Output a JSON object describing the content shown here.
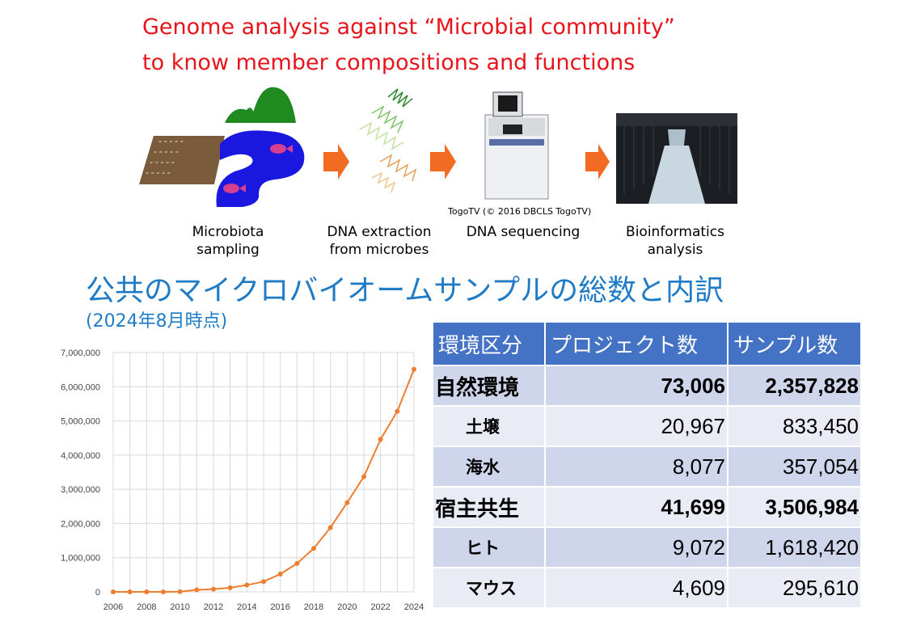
{
  "title": {
    "line1": "Genome analysis against “Microbial community”",
    "line2": "to know member compositions and functions"
  },
  "workflow": {
    "steps": [
      {
        "line1": "Microbiota",
        "line2": "sampling"
      },
      {
        "line1": "DNA extraction",
        "line2": "from microbes"
      },
      {
        "line1": "DNA sequencing",
        "line2": ""
      },
      {
        "line1": "Bioinformatics",
        "line2": "analysis"
      }
    ],
    "credit": "TogoTV (© 2016 DBCLS TogoTV)",
    "colors": {
      "arrow": "#f26b22",
      "river": "#1a18e0",
      "hill": "#1f8a1f",
      "fish": "#d63f8e",
      "soil": "#7a5c3c"
    }
  },
  "heading": {
    "main": "公共のマイクロバイオームサンプルの総数と内訳",
    "sub": "(2024年8月時点)"
  },
  "table": {
    "headers": [
      "環境区分",
      "プロジェクト数",
      "サンプル数"
    ],
    "rows": [
      {
        "label": "自然環境",
        "projects": "73,006",
        "samples": "2,357,828",
        "major": true
      },
      {
        "label": "土壌",
        "projects": "20,967",
        "samples": "833,450",
        "major": false
      },
      {
        "label": "海水",
        "projects": "8,077",
        "samples": "357,054",
        "major": false
      },
      {
        "label": "宿主共生",
        "projects": "41,699",
        "samples": "3,506,984",
        "major": true
      },
      {
        "label": "ヒト",
        "projects": "9,072",
        "samples": "1,618,420",
        "major": false
      },
      {
        "label": "マウス",
        "projects": "4,609",
        "samples": "295,610",
        "major": false
      }
    ],
    "colors": {
      "header": "#4472c4",
      "row_dark": "#cfd5ea",
      "row_light": "#e9ebf5"
    }
  },
  "chart_data": {
    "type": "line",
    "x": [
      2006,
      2007,
      2008,
      2009,
      2010,
      2011,
      2012,
      2013,
      2014,
      2015,
      2016,
      2017,
      2018,
      2019,
      2020,
      2021,
      2022,
      2023,
      2024
    ],
    "series": [
      {
        "values": [
          0,
          0,
          0,
          0,
          5000,
          60000,
          80000,
          120000,
          200000,
          300000,
          520000,
          830000,
          1270000,
          1880000,
          2610000,
          3370000,
          4460000,
          5280000,
          6510000
        ],
        "color": "#ed7d31"
      }
    ],
    "xticks": [
      "2006",
      "2008",
      "2010",
      "2012",
      "2014",
      "2016",
      "2018",
      "2020",
      "2022",
      "2024"
    ],
    "yticks": [
      "0",
      "1,000,000",
      "2,000,000",
      "3,000,000",
      "4,000,000",
      "5,000,000",
      "6,000,000",
      "7,000,000"
    ],
    "ylim": [
      0,
      7000000
    ],
    "xlim": [
      2006,
      2024
    ],
    "grid": true,
    "title": "",
    "xlabel": "",
    "ylabel": ""
  }
}
